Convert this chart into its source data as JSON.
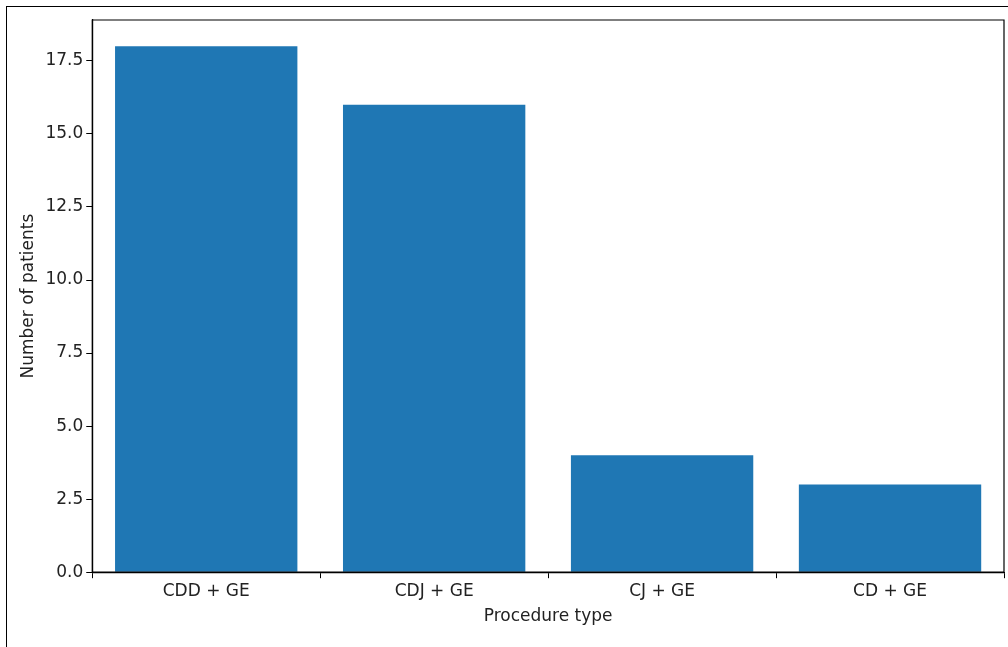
{
  "chart_data": {
    "type": "bar",
    "xlabel": "Procedure type",
    "ylabel": "Number of patients",
    "categories": [
      "CDD + GE",
      "CDJ + GE",
      "CJ + GE",
      "CD + GE"
    ],
    "values": [
      18,
      16,
      4,
      3
    ],
    "color": "#1f77b4",
    "ylim": [
      0,
      18.9
    ],
    "yticks": [
      {
        "value": 0,
        "label": "0.0"
      },
      2.5,
      {
        "value": 5,
        "label": "5.0"
      },
      7.5,
      {
        "value": 10,
        "label": "10.0"
      },
      12.5,
      {
        "value": 15,
        "label": "15.0"
      },
      17.5
    ],
    "grid": false,
    "legend": false
  }
}
